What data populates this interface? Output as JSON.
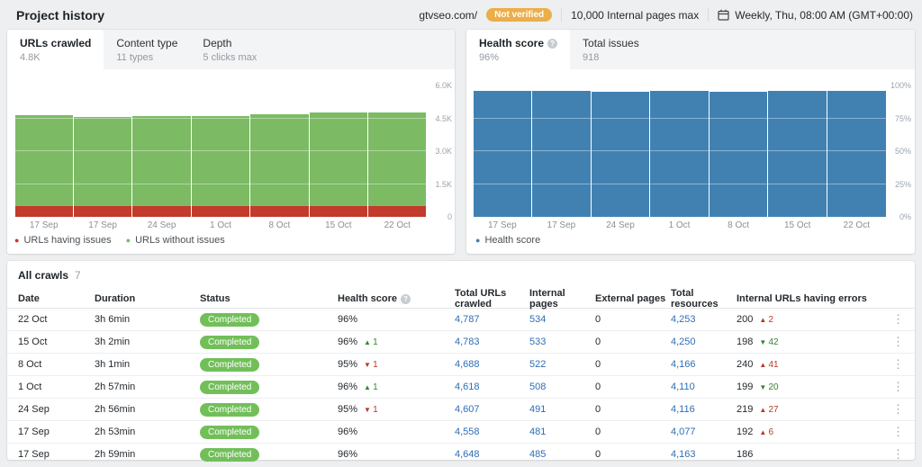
{
  "header": {
    "title": "Project history",
    "domain": "gtvseo.com/",
    "verification_badge": "Not verified",
    "pages_limit": "10,000 Internal pages max",
    "schedule": "Weekly, Thu, 08:00 AM (GMT+00:00)"
  },
  "urls_panel": {
    "tabs": [
      {
        "label": "URLs crawled",
        "sub": "4.8K",
        "active": true
      },
      {
        "label": "Content type",
        "sub": "11 types",
        "active": false
      },
      {
        "label": "Depth",
        "sub": "5 clicks max",
        "active": false
      }
    ]
  },
  "health_panel": {
    "tabs": [
      {
        "label": "Health score",
        "sub": "96%",
        "active": true,
        "info": true
      },
      {
        "label": "Total issues",
        "sub": "918",
        "active": false
      }
    ]
  },
  "chart_data": [
    {
      "type": "bar",
      "stacked": true,
      "title": "URLs crawled",
      "categories": [
        "17 Sep",
        "17 Sep",
        "24 Sep",
        "1 Oct",
        "8 Oct",
        "15 Oct",
        "22 Oct"
      ],
      "series": [
        {
          "name": "URLs having issues",
          "color": "#c23b2c",
          "values": [
            500,
            500,
            500,
            500,
            500,
            500,
            500
          ]
        },
        {
          "name": "URLs without issues",
          "color": "#7cbb64",
          "values": [
            4148,
            4058,
            4107,
            4118,
            4188,
            4283,
            4287
          ]
        }
      ],
      "ylim": [
        0,
        6000
      ],
      "yticks": [
        "6.0K",
        "4.5K",
        "3.0K",
        "1.5K",
        "0"
      ],
      "grid": true,
      "legend_position": "bottom"
    },
    {
      "type": "bar",
      "stacked": false,
      "title": "Health score",
      "categories": [
        "17 Sep",
        "17 Sep",
        "24 Sep",
        "1 Oct",
        "8 Oct",
        "15 Oct",
        "22 Oct"
      ],
      "series": [
        {
          "name": "Health score",
          "color": "#4181b2",
          "values": [
            96,
            96,
            95,
            96,
            95,
            96,
            96
          ]
        }
      ],
      "ylim": [
        0,
        100
      ],
      "yticks": [
        "100%",
        "75%",
        "50%",
        "25%",
        "0%"
      ],
      "grid": true,
      "legend_position": "bottom"
    }
  ],
  "crawls": {
    "title": "All crawls",
    "count": "7",
    "columns": [
      {
        "label": "Date"
      },
      {
        "label": "Duration"
      },
      {
        "label": "Status"
      },
      {
        "label": "Health score",
        "info": true
      },
      {
        "label": "Total URLs crawled"
      },
      {
        "label": "Internal pages"
      },
      {
        "label": "External pages"
      },
      {
        "label": "Total resources"
      },
      {
        "label": "Internal URLs having errors"
      }
    ],
    "rows": [
      {
        "date": "22 Oct",
        "duration": "3h 6min",
        "status": "Completed",
        "health": "96%",
        "health_delta": null,
        "total_urls": "4,787",
        "internal": "534",
        "external": "0",
        "resources": "4,253",
        "errors": "200",
        "errors_delta": {
          "arrow": "▲",
          "value": "2",
          "tone": "bad"
        }
      },
      {
        "date": "15 Oct",
        "duration": "3h 2min",
        "status": "Completed",
        "health": "96%",
        "health_delta": {
          "arrow": "▲",
          "value": "1",
          "tone": "good"
        },
        "total_urls": "4,783",
        "internal": "533",
        "external": "0",
        "resources": "4,250",
        "errors": "198",
        "errors_delta": {
          "arrow": "▼",
          "value": "42",
          "tone": "good"
        }
      },
      {
        "date": "8 Oct",
        "duration": "3h 1min",
        "status": "Completed",
        "health": "95%",
        "health_delta": {
          "arrow": "▼",
          "value": "1",
          "tone": "bad"
        },
        "total_urls": "4,688",
        "internal": "522",
        "external": "0",
        "resources": "4,166",
        "errors": "240",
        "errors_delta": {
          "arrow": "▲",
          "value": "41",
          "tone": "bad"
        }
      },
      {
        "date": "1 Oct",
        "duration": "2h 57min",
        "status": "Completed",
        "health": "96%",
        "health_delta": {
          "arrow": "▲",
          "value": "1",
          "tone": "good"
        },
        "total_urls": "4,618",
        "internal": "508",
        "external": "0",
        "resources": "4,110",
        "errors": "199",
        "errors_delta": {
          "arrow": "▼",
          "value": "20",
          "tone": "good"
        }
      },
      {
        "date": "24 Sep",
        "duration": "2h 56min",
        "status": "Completed",
        "health": "95%",
        "health_delta": {
          "arrow": "▼",
          "value": "1",
          "tone": "bad"
        },
        "total_urls": "4,607",
        "internal": "491",
        "external": "0",
        "resources": "4,116",
        "errors": "219",
        "errors_delta": {
          "arrow": "▲",
          "value": "27",
          "tone": "bad"
        }
      },
      {
        "date": "17 Sep",
        "duration": "2h 53min",
        "status": "Completed",
        "health": "96%",
        "health_delta": null,
        "total_urls": "4,558",
        "internal": "481",
        "external": "0",
        "resources": "4,077",
        "errors": "192",
        "errors_delta": {
          "arrow": "▲",
          "value": "6",
          "tone": "bad"
        }
      },
      {
        "date": "17 Sep",
        "duration": "2h 59min",
        "status": "Completed",
        "health": "96%",
        "health_delta": null,
        "total_urls": "4,648",
        "internal": "485",
        "external": "0",
        "resources": "4,163",
        "errors": "186",
        "errors_delta": null
      }
    ]
  },
  "colors": {
    "bar_red": "#c23b2c",
    "bar_green": "#7cbb64",
    "bar_blue": "#4181b2",
    "status_pill": "#72bf5a",
    "link_blue": "#2e6eb5",
    "delta_bad": "#b5392a",
    "delta_good": "#35842f",
    "badge_amber": "#ecae49"
  }
}
